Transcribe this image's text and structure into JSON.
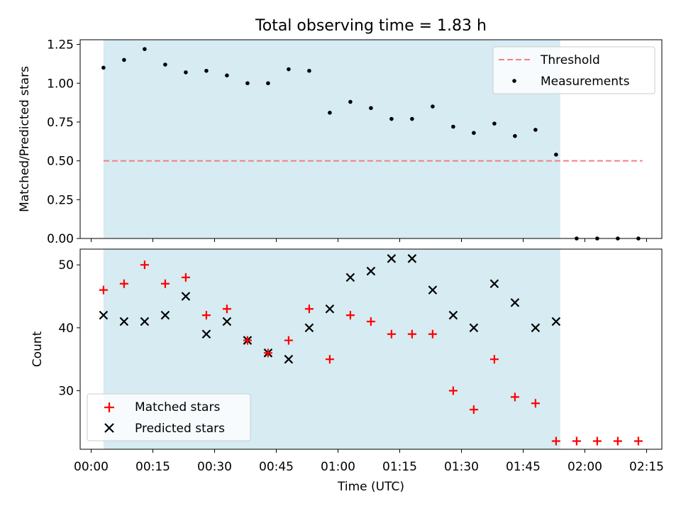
{
  "chart_data": [
    {
      "type": "scatter",
      "title": "Total observing time = 1.83 h",
      "xlabel": "",
      "ylabel": "Matched/Predicted stars",
      "ylim": [
        0,
        1.28
      ],
      "yticks": [
        0,
        0.25,
        0.5,
        0.75,
        1.0,
        1.25
      ],
      "ytick_labels": [
        "0.00",
        "0.25",
        "0.50",
        "0.75",
        "1.00",
        "1.25"
      ],
      "shaded_interval": [
        "00:03",
        "01:54"
      ],
      "threshold": {
        "name": "Threshold",
        "value": 0.5,
        "x_range": [
          "00:03",
          "02:14"
        ],
        "color": "#f08080",
        "style": "dashed"
      },
      "series": [
        {
          "name": "Measurements",
          "color": "#000000",
          "marker": "dot",
          "x": [
            "00:03",
            "00:08",
            "00:13",
            "00:18",
            "00:23",
            "00:28",
            "00:33",
            "00:38",
            "00:43",
            "00:48",
            "00:53",
            "00:58",
            "01:03",
            "01:08",
            "01:13",
            "01:18",
            "01:23",
            "01:28",
            "01:33",
            "01:38",
            "01:43",
            "01:48",
            "01:53",
            "01:58",
            "02:03",
            "02:08",
            "02:13"
          ],
          "values": [
            1.1,
            1.15,
            1.22,
            1.12,
            1.07,
            1.08,
            1.05,
            1.0,
            1.0,
            1.09,
            1.08,
            0.81,
            0.88,
            0.84,
            0.77,
            0.77,
            0.85,
            0.72,
            0.68,
            0.74,
            0.66,
            0.7,
            0.54,
            0,
            0,
            0,
            0
          ]
        }
      ],
      "legend": {
        "placement": "top-right",
        "entries": [
          "Threshold",
          "Measurements"
        ]
      },
      "grid": false
    },
    {
      "type": "scatter",
      "title": "",
      "xlabel": "Time (UTC)",
      "ylabel": "Count",
      "ylim": [
        20.7,
        52.5
      ],
      "yticks": [
        30,
        40,
        50
      ],
      "ytick_labels": [
        "30",
        "40",
        "50"
      ],
      "xticks": [
        "00:00",
        "00:15",
        "00:30",
        "00:45",
        "01:00",
        "01:15",
        "01:30",
        "01:45",
        "02:00",
        "02:15"
      ],
      "shaded_interval": [
        "00:03",
        "01:54"
      ],
      "series": [
        {
          "name": "Matched stars",
          "color": "#ff0000",
          "marker": "plus",
          "x": [
            "00:03",
            "00:08",
            "00:13",
            "00:18",
            "00:23",
            "00:28",
            "00:33",
            "00:38",
            "00:43",
            "00:48",
            "00:53",
            "00:58",
            "01:03",
            "01:08",
            "01:13",
            "01:18",
            "01:23",
            "01:28",
            "01:33",
            "01:38",
            "01:43",
            "01:48",
            "01:53",
            "01:58",
            "02:03",
            "02:08",
            "02:13"
          ],
          "values": [
            46,
            47,
            50,
            47,
            48,
            42,
            43,
            38,
            36,
            38,
            43,
            35,
            42,
            41,
            39,
            39,
            39,
            30,
            27,
            35,
            29,
            28,
            22,
            22,
            22,
            22,
            22
          ]
        },
        {
          "name": "Predicted stars",
          "color": "#000000",
          "marker": "x",
          "x": [
            "00:03",
            "00:08",
            "00:13",
            "00:18",
            "00:23",
            "00:28",
            "00:33",
            "00:38",
            "00:43",
            "00:48",
            "00:53",
            "00:58",
            "01:03",
            "01:08",
            "01:13",
            "01:18",
            "01:23",
            "01:28",
            "01:33",
            "01:38",
            "01:43",
            "01:48",
            "01:53"
          ],
          "values": [
            42,
            41,
            41,
            42,
            45,
            39,
            41,
            38,
            36,
            35,
            40,
            43,
            48,
            49,
            51,
            51,
            46,
            42,
            40,
            47,
            44,
            40,
            41
          ]
        }
      ],
      "legend": {
        "placement": "bottom-left",
        "entries": [
          "Matched stars",
          "Predicted stars"
        ]
      },
      "grid": false
    }
  ],
  "colors": {
    "shade": "#add8e6",
    "threshold": "#f08080",
    "matched": "#ff0000",
    "predicted": "#000000"
  }
}
